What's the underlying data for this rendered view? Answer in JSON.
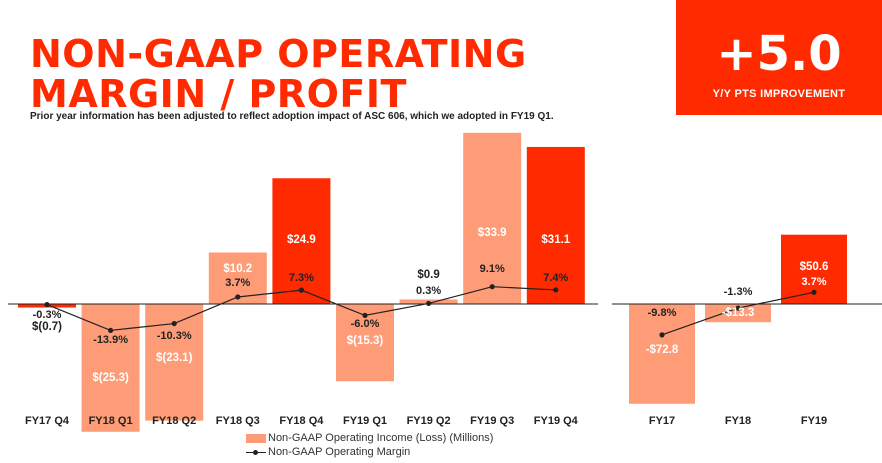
{
  "header": {
    "title": "NON-GAAP OPERATING\nMARGIN / PROFIT",
    "subtitle": "Prior year information has been adjusted to reflect adoption impact of ASC 606, which we adopted in FY19 Q1."
  },
  "kpi": {
    "value": "+5.0",
    "label": "Y/Y PTS IMPROVEMENT"
  },
  "colors": {
    "accent": "#ff2a00",
    "bar_light": "#fd9c76",
    "bar_dark": "#ff2a00",
    "line": "#222222"
  },
  "legend": {
    "income_label": "Non-GAAP Operating Income (Loss) (Millions)",
    "margin_label": "Non-GAAP Operating Margin"
  },
  "chart_data": [
    {
      "type": "bar",
      "title": "",
      "categories": [
        "FY17 Q4",
        "FY18 Q1",
        "FY18 Q2",
        "FY18 Q3",
        "FY18 Q4",
        "FY19 Q1",
        "FY19 Q2",
        "FY19 Q3",
        "FY19 Q4"
      ],
      "series": [
        {
          "name": "Non-GAAP Operating Income (Loss) (Millions)",
          "values": [
            -0.7,
            -25.3,
            -23.1,
            10.2,
            24.9,
            -15.3,
            0.9,
            33.9,
            31.1
          ],
          "labels": [
            "$(0.7)",
            "$(25.3)",
            "$(23.1)",
            "$10.2",
            "$24.9",
            "$(15.3)",
            "$0.9",
            "$33.9",
            "$31.1"
          ],
          "highlight": [
            true,
            false,
            false,
            false,
            true,
            false,
            false,
            false,
            true
          ]
        },
        {
          "name": "Non-GAAP Operating Margin",
          "type": "line",
          "values": [
            -0.3,
            -13.9,
            -10.3,
            3.7,
            7.3,
            -6.0,
            0.3,
            9.1,
            7.4
          ],
          "labels": [
            "-0.3%",
            "-13.9%",
            "-10.3%",
            "3.7%",
            "7.3%",
            "-6.0%",
            "0.3%",
            "9.1%",
            "7.4%"
          ]
        }
      ]
    },
    {
      "type": "bar",
      "title": "",
      "categories": [
        "FY17",
        "FY18",
        "FY19"
      ],
      "series": [
        {
          "name": "Non-GAAP Operating Income (Loss) (Millions)",
          "values": [
            -72.8,
            -13.3,
            50.6
          ],
          "labels": [
            "-$72.8",
            "-$13.3",
            "$50.6"
          ],
          "highlight": [
            false,
            false,
            true
          ]
        },
        {
          "name": "Non-GAAP Operating Margin",
          "type": "line",
          "values": [
            -9.8,
            -1.3,
            3.7
          ],
          "labels": [
            "-9.8%",
            "-1.3%",
            "3.7%"
          ]
        }
      ]
    }
  ]
}
